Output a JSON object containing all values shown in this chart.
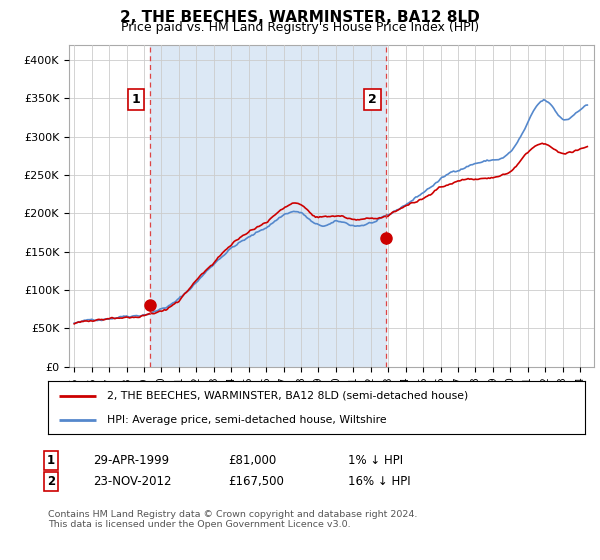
{
  "title": "2, THE BEECHES, WARMINSTER, BA12 8LD",
  "subtitle": "Price paid vs. HM Land Registry's House Price Index (HPI)",
  "background_color": "#ffffff",
  "chart_bg_color": "#e8f0f8",
  "grid_color": "#cccccc",
  "hpi_color": "#5588cc",
  "price_color": "#cc0000",
  "ylim": [
    0,
    420000
  ],
  "yticks": [
    0,
    50000,
    100000,
    150000,
    200000,
    250000,
    300000,
    350000,
    400000
  ],
  "ytick_labels": [
    "£0",
    "£50K",
    "£100K",
    "£150K",
    "£200K",
    "£250K",
    "£300K",
    "£350K",
    "£400K"
  ],
  "transaction1": {
    "date_num": 1999.32,
    "price": 81000,
    "label": "1"
  },
  "transaction2": {
    "date_num": 2012.9,
    "price": 167500,
    "label": "2"
  },
  "vline_color": "#dd4444",
  "vline_style": "--",
  "shade_color": "#dce8f5",
  "legend_line1": "2, THE BEECHES, WARMINSTER, BA12 8LD (semi-detached house)",
  "legend_line2": "HPI: Average price, semi-detached house, Wiltshire",
  "table_row1": [
    "1",
    "29-APR-1999",
    "£81,000",
    "1% ↓ HPI"
  ],
  "table_row2": [
    "2",
    "23-NOV-2012",
    "£167,500",
    "16% ↓ HPI"
  ],
  "footnote": "Contains HM Land Registry data © Crown copyright and database right 2024.\nThis data is licensed under the Open Government Licence v3.0.",
  "xlim_left": 1994.7,
  "xlim_right": 2024.8
}
